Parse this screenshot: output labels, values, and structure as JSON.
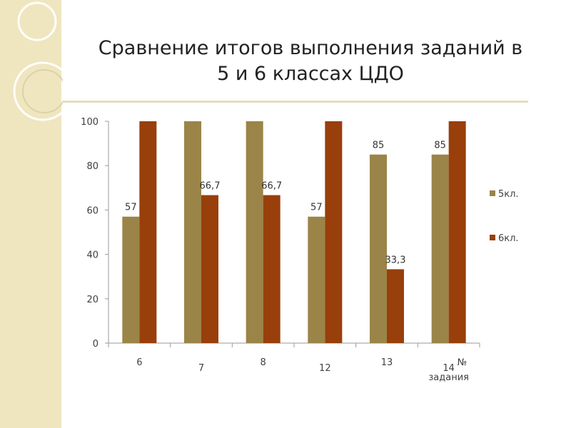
{
  "title": {
    "line1": "Сравнение итогов выполнения заданий в",
    "line2": "5 и 6 классах ЦДО"
  },
  "colors": {
    "background_band": "#efe6c0",
    "series_5": "#9b8448",
    "series_6": "#983f0c",
    "axis": "#9a9a9a"
  },
  "chart_data": {
    "type": "bar",
    "categories": [
      "6",
      "7",
      "8",
      "12",
      "13",
      "14"
    ],
    "xlabel": "№ задания",
    "ylabel": "",
    "ylim": [
      0,
      100
    ],
    "yticks": [
      0,
      20,
      40,
      60,
      80,
      100
    ],
    "grid": false,
    "legend": "right",
    "series": [
      {
        "name": "5кл.",
        "values": [
          57,
          100,
          100,
          57,
          85,
          85
        ],
        "data_labels": [
          "57",
          "",
          "",
          "57",
          "85",
          "85"
        ]
      },
      {
        "name": "6кл.",
        "values": [
          100,
          66.7,
          66.7,
          100,
          33.3,
          100
        ],
        "data_labels": [
          "",
          "66,7",
          "66,7",
          "",
          "33,3",
          ""
        ]
      }
    ]
  }
}
